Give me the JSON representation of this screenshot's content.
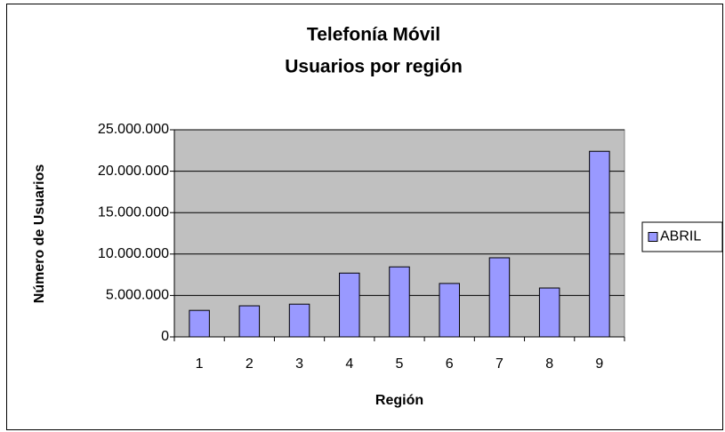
{
  "chart_data": {
    "type": "bar",
    "title": "Telefonía Móvil",
    "subtitle": "Usuarios por región",
    "x_label": "Región",
    "y_label": "Número de Usuarios",
    "categories": [
      "1",
      "2",
      "3",
      "4",
      "5",
      "6",
      "7",
      "8",
      "9"
    ],
    "series": [
      {
        "name": "ABRIL",
        "color": "#9999ff",
        "values": [
          3200000,
          3750000,
          3950000,
          7700000,
          8450000,
          6450000,
          9550000,
          5900000,
          22400000
        ]
      }
    ],
    "ylim": [
      0,
      25000000
    ],
    "yticks": [
      0,
      {
        "value": 5000000,
        "label": "5.000.000"
      },
      {
        "value": 10000000,
        "label": "10.000.000"
      },
      {
        "value": 15000000,
        "label": "15.000.000"
      },
      {
        "value": 20000000,
        "label": "20.000.000"
      },
      {
        "value": 25000000,
        "label": "25.000.000"
      }
    ],
    "grid": true,
    "legend": "right"
  }
}
